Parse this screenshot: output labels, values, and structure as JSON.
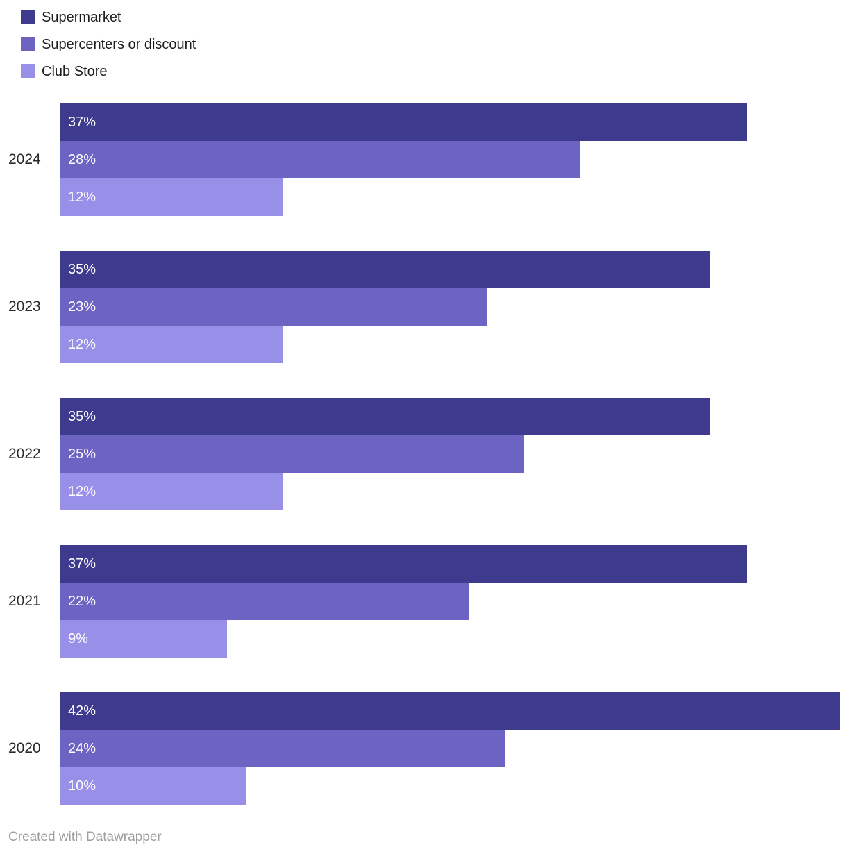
{
  "chart_data": {
    "type": "bar",
    "orientation": "horizontal",
    "title": "",
    "categories": [
      "2024",
      "2023",
      "2022",
      "2021",
      "2020"
    ],
    "series": [
      {
        "name": "Supermarket",
        "color": "#3e3b8f",
        "values": [
          37,
          35,
          35,
          37,
          42
        ]
      },
      {
        "name": "Supercenters or discount",
        "color": "#6c63c2",
        "values": [
          28,
          23,
          25,
          22,
          24
        ]
      },
      {
        "name": "Club Store",
        "color": "#988fe8",
        "values": [
          12,
          12,
          12,
          9,
          10
        ]
      }
    ],
    "value_suffix": "%",
    "xlabel": "",
    "ylabel": "",
    "xmax": 42,
    "grid": false,
    "legend_position": "top-left",
    "label_color": "#ffffff"
  },
  "footer": {
    "credit": "Created with Datawrapper"
  }
}
